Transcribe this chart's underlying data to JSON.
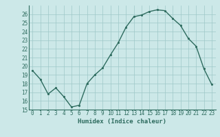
{
  "x": [
    0,
    1,
    2,
    3,
    4,
    5,
    6,
    7,
    8,
    9,
    10,
    11,
    12,
    13,
    14,
    15,
    16,
    17,
    18,
    19,
    20,
    21,
    22,
    23
  ],
  "y": [
    19.5,
    18.5,
    16.8,
    17.5,
    16.5,
    15.3,
    15.5,
    18.0,
    19.0,
    19.8,
    21.3,
    22.7,
    24.5,
    25.7,
    25.9,
    26.3,
    26.5,
    26.4,
    25.5,
    24.7,
    23.2,
    22.3,
    19.7,
    17.9
  ],
  "xlabel": "Humidex (Indice chaleur)",
  "xlim": [
    -0.5,
    23.5
  ],
  "ylim": [
    15,
    27
  ],
  "yticks": [
    15,
    16,
    17,
    18,
    19,
    20,
    21,
    22,
    23,
    24,
    25,
    26
  ],
  "xticks": [
    0,
    1,
    2,
    3,
    4,
    5,
    6,
    7,
    8,
    9,
    10,
    11,
    12,
    13,
    14,
    15,
    16,
    17,
    18,
    19,
    20,
    21,
    22,
    23
  ],
  "line_color": "#2d6b5e",
  "marker_color": "#2d6b5e",
  "bg_color": "#cce8e8",
  "grid_color": "#9dc8c8",
  "tick_color": "#2d6b5e",
  "label_color": "#2d6b5e"
}
